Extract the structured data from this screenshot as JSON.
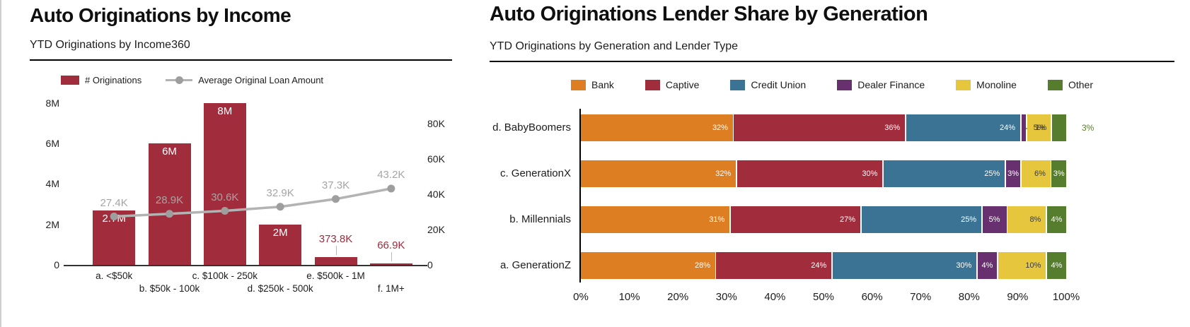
{
  "left_chart": {
    "title": "Auto Originations by Income",
    "subtitle": "YTD Originations by Income360",
    "legend": [
      {
        "label": "# Originations",
        "type": "bar",
        "color": "#A12C3C"
      },
      {
        "label": "Average Original Loan Amount",
        "type": "line",
        "color": "#b3b3b3"
      }
    ],
    "chart_data": {
      "type": "bar",
      "categories": [
        "a. <$50k",
        "b. $50k - 100k",
        "c. $100k - 250k",
        "d. $250k - 500k",
        "e. $500k - 1M",
        "f. 1M+"
      ],
      "series": [
        {
          "name": "# Originations",
          "type": "bar",
          "axis": "left",
          "color": "#A12C3C",
          "values": [
            2700000,
            6000000,
            8000000,
            2000000,
            373800,
            66900
          ],
          "labels": [
            "2.7M",
            "6M",
            "8M",
            "2M",
            "373.8K",
            "66.9K"
          ]
        },
        {
          "name": "Average Original Loan Amount",
          "type": "line",
          "axis": "right",
          "color": "#b3b3b3",
          "values": [
            27400,
            28900,
            30600,
            32900,
            37300,
            43200
          ],
          "labels": [
            "27.4K",
            "28.9K",
            "30.6K",
            "32.9K",
            "37.3K",
            "43.2K"
          ]
        }
      ],
      "left_axis": {
        "ticks": [
          "0",
          "2M",
          "4M",
          "6M",
          "8M"
        ],
        "tick_values": [
          0,
          2000000,
          4000000,
          6000000,
          8000000
        ],
        "max": 8200000
      },
      "right_axis": {
        "ticks": [
          "0",
          "20K",
          "40K",
          "60K",
          "80K"
        ],
        "tick_values": [
          0,
          20000,
          40000,
          60000,
          80000
        ],
        "max": 94000
      }
    }
  },
  "right_chart": {
    "title": "Auto Originations Lender Share by Generation",
    "subtitle": "YTD Originations by Generation and Lender Type",
    "chart_data": {
      "type": "bar",
      "orientation": "horizontal-stacked",
      "categories": [
        "d. BabyBoomers",
        "c. GenerationX",
        "b. Millennials",
        "a. GenerationZ"
      ],
      "series": [
        {
          "name": "Bank",
          "color": "#DE7E23",
          "values": [
            32,
            32,
            31,
            28
          ],
          "labels": [
            "32%",
            "32%",
            "31%",
            "28%"
          ]
        },
        {
          "name": "Captive",
          "color": "#A12C3C",
          "values": [
            36,
            30,
            27,
            24
          ],
          "labels": [
            "36%",
            "30%",
            "27%",
            "24%"
          ]
        },
        {
          "name": "Credit Union",
          "color": "#3A7394",
          "values": [
            24,
            25,
            25,
            30
          ],
          "labels": [
            "24%",
            "25%",
            "25%",
            "30%"
          ]
        },
        {
          "name": "Dealer Finance",
          "color": "#68306F",
          "values": [
            1,
            3,
            5,
            4
          ],
          "labels": [
            "1%",
            "3%",
            "5%",
            "4%"
          ]
        },
        {
          "name": "Monoline",
          "color": "#E5C63D",
          "values": [
            5,
            6,
            8,
            10
          ],
          "labels": [
            "5%",
            "6%",
            "8%",
            "10%"
          ]
        },
        {
          "name": "Other",
          "color": "#567D2E",
          "values": [
            3,
            3,
            4,
            4
          ],
          "labels": [
            "3%",
            "3%",
            "4%",
            "4%"
          ]
        }
      ],
      "x_ticks": [
        "0%",
        "10%",
        "20%",
        "30%",
        "40%",
        "50%",
        "60%",
        "70%",
        "80%",
        "90%",
        "100%"
      ],
      "xlim": [
        0,
        100
      ],
      "notes": {
        "baby_boomers_other_label_outside": true,
        "baby_boomers_dealer_finance_leader": true
      }
    }
  }
}
